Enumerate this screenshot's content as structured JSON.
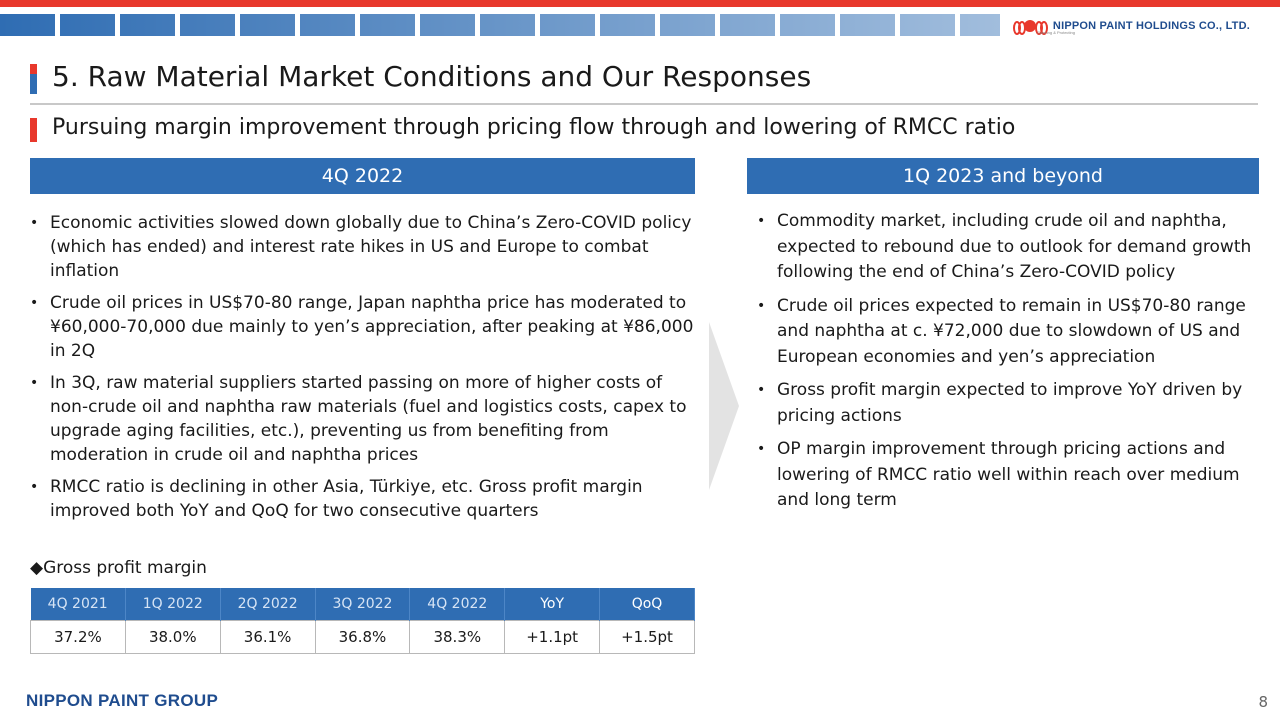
{
  "header": {
    "company": "NIPPON PAINT HOLDINGS CO., LTD.",
    "tagline": "Coloring & Protecting",
    "title": "5. Raw Material Market Conditions and Our Responses",
    "subtitle": "Pursuing margin improvement through pricing flow through and lowering of RMCC ratio"
  },
  "left_panel": {
    "heading": "4Q 2022",
    "bullets": [
      "Economic activities slowed down globally due to China’s Zero-COVID policy (which has ended) and interest rate hikes in US and Europe to combat inflation",
      "Crude oil prices in US$70-80 range, Japan naphtha price has moderated to ¥60,000-70,000 due mainly to yen’s appreciation, after peaking at ¥86,000 in 2Q",
      "In 3Q, raw material suppliers started passing on more of higher costs of non-crude oil and naphtha raw materials (fuel and logistics costs, capex to upgrade aging facilities, etc.), preventing us from benefiting from moderation in crude oil and naphtha prices",
      "RMCC ratio is declining in other Asia, Türkiye, etc. Gross profit margin improved both YoY and QoQ for two consecutive quarters"
    ]
  },
  "right_panel": {
    "heading": "1Q 2023 and beyond",
    "bullets": [
      "Commodity market, including crude oil and naphtha, expected to rebound due to outlook for demand growth following the end of China’s Zero-COVID policy",
      "Crude oil prices expected to remain in US$70-80 range and naphtha at c. ¥72,000 due to slowdown of US and European economies and yen’s appreciation",
      "Gross profit margin expected to improve YoY driven by pricing actions",
      "OP margin improvement through pricing actions and lowering of RMCC ratio well within reach over medium and long term"
    ]
  },
  "gpm": {
    "label": "◆Gross profit margin",
    "headers": [
      "4Q 2021",
      "1Q 2022",
      "2Q 2022",
      "3Q 2022",
      "4Q 2022",
      "YoY",
      "QoQ"
    ],
    "values": [
      "37.2%",
      "38.0%",
      "36.1%",
      "36.8%",
      "38.3%",
      "+1.1pt",
      "+1.5pt"
    ]
  },
  "footer": {
    "group": "NIPPON PAINT GROUP",
    "page": "8"
  },
  "colors": {
    "accent_blue": "#2f6db3",
    "accent_red": "#e8382c"
  },
  "icons": [
    "company-logo-mark",
    "chevron-right-icon"
  ]
}
